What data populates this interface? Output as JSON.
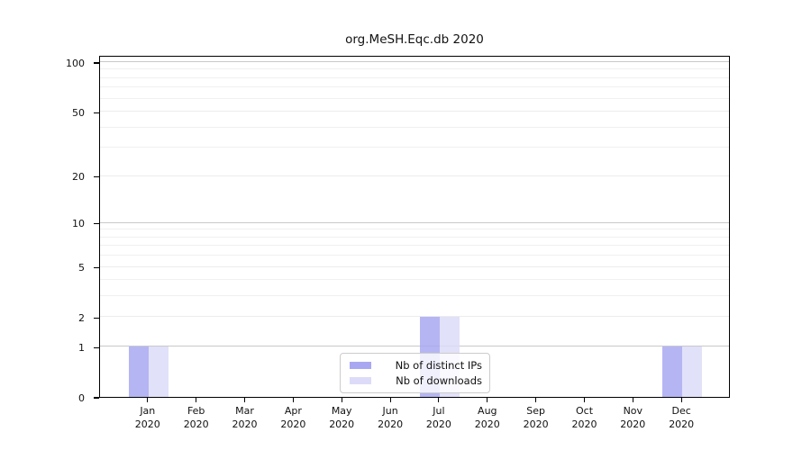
{
  "chart_data": {
    "type": "bar",
    "title": "org.MeSH.Eqc.db 2020",
    "categories": [
      {
        "month": "Jan",
        "year": "2020"
      },
      {
        "month": "Feb",
        "year": "2020"
      },
      {
        "month": "Mar",
        "year": "2020"
      },
      {
        "month": "Apr",
        "year": "2020"
      },
      {
        "month": "May",
        "year": "2020"
      },
      {
        "month": "Jun",
        "year": "2020"
      },
      {
        "month": "Jul",
        "year": "2020"
      },
      {
        "month": "Aug",
        "year": "2020"
      },
      {
        "month": "Sep",
        "year": "2020"
      },
      {
        "month": "Oct",
        "year": "2020"
      },
      {
        "month": "Nov",
        "year": "2020"
      },
      {
        "month": "Dec",
        "year": "2020"
      }
    ],
    "series": [
      {
        "name": "Nb of distinct IPs",
        "color": "#a8a8f2",
        "values": [
          1,
          0,
          0,
          0,
          0,
          0,
          2,
          0,
          0,
          0,
          0,
          1
        ]
      },
      {
        "name": "Nb of downloads",
        "color": "#dcdcf8",
        "values": [
          1,
          0,
          0,
          0,
          0,
          0,
          2,
          0,
          0,
          0,
          0,
          1
        ]
      }
    ],
    "y_axis": {
      "scale": "log10(1+value)",
      "tick_labels": [
        0,
        1,
        2,
        5,
        10,
        20,
        50,
        100
      ],
      "decade_gridlines": [
        1,
        10,
        100
      ],
      "minor_gridlines": [
        3,
        4,
        6,
        7,
        8,
        9,
        30,
        40,
        60,
        70,
        80,
        90
      ],
      "top_value": 108
    },
    "xlabel": "",
    "ylabel": "",
    "grid": true,
    "legend_position": "bottom-center"
  },
  "style": {
    "background": "#ffffff",
    "axis_color": "#000000",
    "grid_decade_color": "#c9c9c9",
    "grid_labeled_color": "#ececec",
    "grid_minor_color": "#f0f0f0",
    "text_color": "#111111"
  }
}
